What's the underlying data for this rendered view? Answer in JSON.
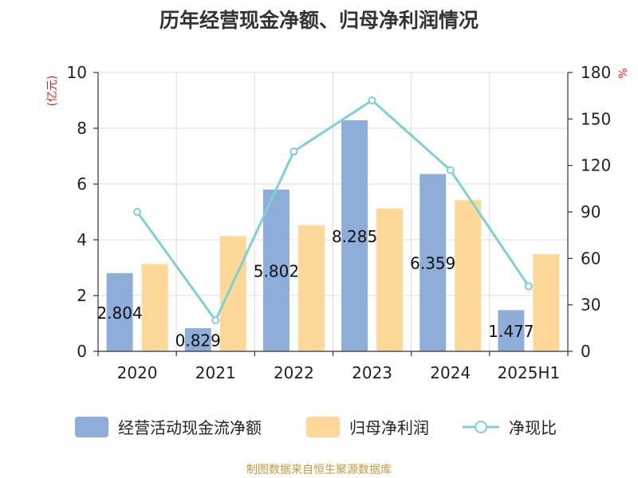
{
  "title": "历年经营现金净额、归母净利润情况",
  "source": "制图数据来自恒生聚源数据库",
  "chart_data": {
    "type": "bar",
    "categories": [
      "2020",
      "2021",
      "2022",
      "2023",
      "2024",
      "2025H1"
    ],
    "left_axis": {
      "unit": "(亿元)",
      "ylim": [
        0,
        10
      ],
      "ticks": [
        0,
        2,
        4,
        6,
        8,
        10
      ],
      "unit_color": "#e02020"
    },
    "right_axis": {
      "unit": "%",
      "ylim": [
        0,
        180
      ],
      "ticks": [
        0,
        30,
        60,
        90,
        120,
        150,
        180
      ],
      "unit_color": "#e02020"
    },
    "grid": true,
    "legend_position": "bottom",
    "series": [
      {
        "name": "经营活动现金流净额",
        "type": "bar",
        "axis": "left",
        "color": "#8eadd9",
        "values": [
          2.804,
          0.829,
          5.802,
          8.285,
          6.359,
          1.477
        ],
        "labels": [
          "2.804",
          "0.829",
          "5.802",
          "8.285",
          "6.359",
          "1.477"
        ]
      },
      {
        "name": "归母净利润",
        "type": "bar",
        "axis": "left",
        "color": "#fdd898",
        "values": [
          3.13,
          4.13,
          4.52,
          5.12,
          5.42,
          3.48
        ]
      },
      {
        "name": "净现比",
        "type": "line",
        "axis": "right",
        "color": "#7fcfd8",
        "values": [
          90,
          20,
          129,
          162,
          117,
          42
        ]
      }
    ]
  }
}
